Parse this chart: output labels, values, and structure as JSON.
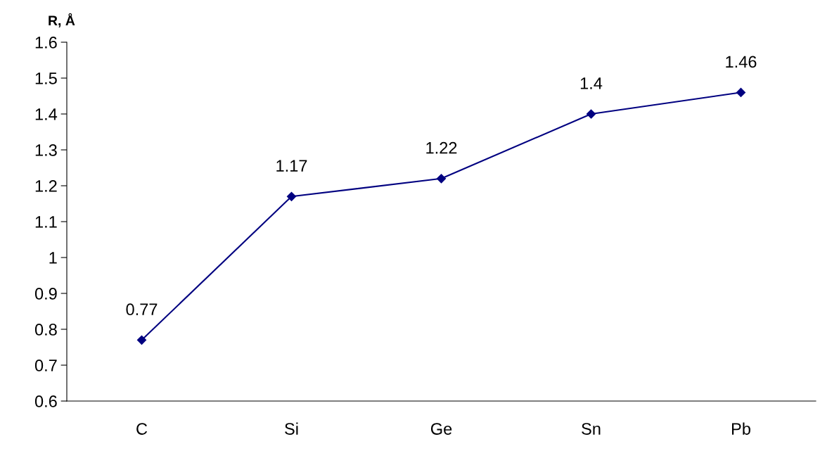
{
  "chart_data": {
    "type": "line",
    "ylabel": "R, Å",
    "categories": [
      "C",
      "Si",
      "Ge",
      "Sn",
      "Pb"
    ],
    "series": [
      {
        "color": "#000080",
        "values": [
          0.77,
          1.17,
          1.22,
          1.4,
          1.46
        ]
      }
    ],
    "ylim": [
      0.6,
      1.6
    ],
    "yticks": [
      0.6,
      0.7,
      0.8,
      0.9,
      1,
      1.1,
      1.2,
      1.3,
      1.4,
      1.5,
      1.6
    ],
    "marker": "diamond",
    "line_style": "solid",
    "data_labels": true,
    "grid": false,
    "legend": false
  }
}
